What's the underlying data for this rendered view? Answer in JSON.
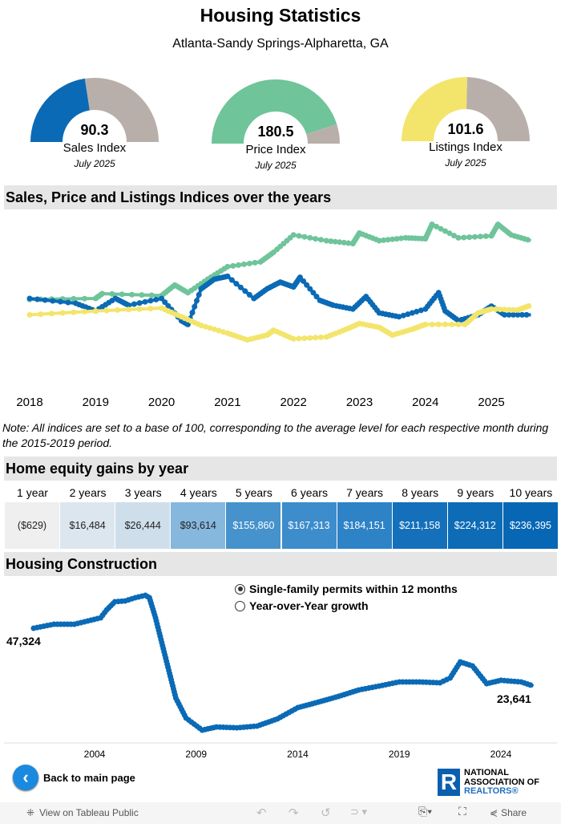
{
  "header": {
    "title": "Housing Statistics",
    "subtitle": "Atlanta-Sandy Springs-Alpharetta, GA"
  },
  "gauges": [
    {
      "value": 90.3,
      "label": "Sales Index",
      "date": "July 2025",
      "max": 200,
      "color": "#0b6ab5",
      "rest": "#b9afaa"
    },
    {
      "value": 180.5,
      "label": "Price Index",
      "date": "July 2025",
      "max": 200,
      "color": "#6fc49a",
      "rest": "#b9afaa"
    },
    {
      "value": 101.6,
      "label": "Listings Index",
      "date": "July 2025",
      "max": 200,
      "color": "#f3e56b",
      "rest": "#b9afaa"
    }
  ],
  "sections": {
    "indices": "Sales, Price and Listings Indices over the years",
    "equity": "Home equity gains by year",
    "construction": "Housing Construction"
  },
  "note": "Note: All indices are set to a base of 100, corresponding to the average level for each respective month during the 2015-2019 period.",
  "equity": {
    "headers": [
      "1 year",
      "2 years",
      "3 years",
      "4 years",
      "5 years",
      "6 years",
      "7 years",
      "8 years",
      "9 years",
      "10 years"
    ],
    "values": [
      "($629)",
      "$16,484",
      "$26,444",
      "$93,614",
      "$155,860",
      "$167,313",
      "$184,151",
      "$211,158",
      "$224,312",
      "$236,395"
    ],
    "colors": [
      "#efefef",
      "#dce6ee",
      "#cfdeeb",
      "#86b7dd",
      "#4592cc",
      "#3d8ccb",
      "#2e82c6",
      "#1470ba",
      "#0e6bb6",
      "#0767b4"
    ]
  },
  "radio": {
    "options": [
      "Single-family permits within 12 months",
      "Year-over-Year growth"
    ],
    "selected": 0
  },
  "back_label": "Back to main page",
  "logo": {
    "line1": "NATIONAL",
    "line2": "ASSOCIATION OF",
    "line3": "REALTORS®"
  },
  "toolbar": {
    "view": "View on Tableau Public",
    "share": "Share"
  },
  "chart_data": [
    {
      "type": "line",
      "title": "Sales, Price and Listings Indices over the years",
      "xticks": [
        2018,
        2019,
        2020,
        2021,
        2022,
        2023,
        2024,
        2025
      ],
      "xlim": [
        2018,
        2025.6
      ],
      "series": [
        {
          "name": "Price Index",
          "color": "#6fc49a",
          "x": [
            2018,
            2019,
            2019.1,
            2020,
            2020.2,
            2020.4,
            2020.7,
            2021,
            2021.5,
            2021.7,
            2022,
            2022.5,
            2022.9,
            2023,
            2023.3,
            2023.7,
            2024,
            2024.1,
            2024.5,
            2025,
            2025.1,
            2025.3,
            2025.6
          ],
          "y": [
            114,
            115,
            120,
            118,
            129,
            121,
            135,
            148,
            153,
            163,
            181,
            175,
            172,
            183,
            175,
            178,
            177,
            192,
            178,
            180,
            192,
            181,
            175
          ]
        },
        {
          "name": "Sales Index",
          "color": "#0b6ab5",
          "x": [
            2018,
            2018.7,
            2019,
            2019.3,
            2019.5,
            2020,
            2020.3,
            2020.4,
            2020.6,
            2020.8,
            2021,
            2021.4,
            2021.6,
            2021.8,
            2022,
            2022.1,
            2022.4,
            2022.6,
            2022.9,
            2023.1,
            2023.3,
            2023.6,
            2024,
            2024.2,
            2024.3,
            2024.5,
            2024.8,
            2025,
            2025.2,
            2025.6
          ],
          "y": [
            115,
            110,
            102,
            115,
            108,
            115,
            92,
            88,
            125,
            135,
            138,
            115,
            125,
            132,
            127,
            137,
            113,
            108,
            104,
            117,
            100,
            96,
            104,
            121,
            102,
            92,
            98,
            107,
            98,
            98
          ]
        },
        {
          "name": "Listings Index",
          "color": "#f3e56b",
          "x": [
            2018,
            2019,
            2020,
            2020.3,
            2020.6,
            2021,
            2021.3,
            2021.6,
            2021.7,
            2022,
            2022.5,
            2022.8,
            2023,
            2023.3,
            2023.5,
            2023.8,
            2024,
            2024.6,
            2024.8,
            2025,
            2025.4,
            2025.6
          ],
          "y": [
            98,
            102,
            105,
            96,
            87,
            79,
            72,
            77,
            82,
            73,
            75,
            83,
            89,
            85,
            77,
            83,
            88,
            88,
            100,
            104,
            103,
            108
          ]
        }
      ]
    },
    {
      "type": "line",
      "title": "Housing Construction",
      "series_name": "Single-family permits within 12 months",
      "xticks": [
        2004,
        2009,
        2014,
        2019,
        2024
      ],
      "first_label": "47,324",
      "last_label": "23,641",
      "color": "#0b6ab5",
      "x": [
        2001,
        2002,
        2003,
        2003.5,
        2004.3,
        2004.6,
        2005,
        2005.5,
        2006,
        2006.5,
        2006.7,
        2007,
        2007.5,
        2008,
        2008.5,
        2009.3,
        2010,
        2011,
        2012,
        2013,
        2014,
        2015,
        2016,
        2017,
        2018,
        2019,
        2020,
        2021,
        2021.5,
        2022,
        2022.6,
        2023.3,
        2024,
        2025,
        2025.6
      ],
      "y": [
        47324,
        48970,
        48970,
        49960,
        51600,
        54900,
        58200,
        58500,
        59830,
        60800,
        59830,
        51600,
        35100,
        18700,
        10500,
        5550,
        6830,
        6500,
        7200,
        10140,
        14750,
        17000,
        19350,
        22000,
        23600,
        25300,
        25300,
        24950,
        26900,
        33500,
        31860,
        24600,
        25960,
        25300,
        23641
      ]
    }
  ]
}
